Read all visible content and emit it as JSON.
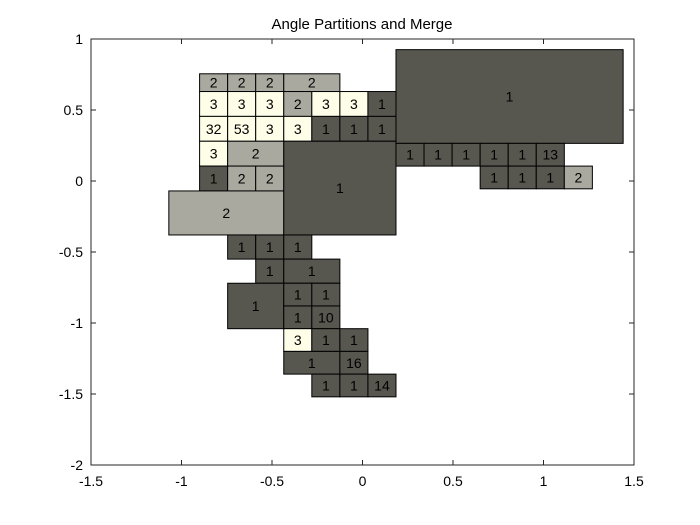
{
  "chart_data": {
    "type": "patch-grid",
    "title": "Angle Partitions and Merge",
    "xlabel": "",
    "ylabel": "",
    "xlim": [
      -1.5,
      1.5
    ],
    "ylim": [
      -2,
      1
    ],
    "xticks": [
      -1.5,
      -1,
      -0.5,
      0,
      0.5,
      1,
      1.5
    ],
    "yticks": [
      -2,
      -1.5,
      -1,
      -0.5,
      0,
      0.5,
      1
    ],
    "xtick_labels": [
      "-1.5",
      "-1",
      "-0.5",
      "0",
      "0.5",
      "1",
      "1.5"
    ],
    "ytick_labels": [
      "-2",
      "-1.5",
      "-1",
      "-0.5",
      "0",
      "0.5",
      "1"
    ],
    "grid": false,
    "colors": {
      "1": "#57564f",
      "2": "#aaa99f",
      "3": "#fefee8"
    },
    "cells": [
      {
        "x0": -0.9,
        "x1": -0.745,
        "y0": 0.63,
        "y1": 0.755,
        "label": "2",
        "value": 2
      },
      {
        "x0": -0.745,
        "x1": -0.59,
        "y0": 0.63,
        "y1": 0.755,
        "label": "2",
        "value": 2
      },
      {
        "x0": -0.59,
        "x1": -0.435,
        "y0": 0.63,
        "y1": 0.755,
        "label": "2",
        "value": 2
      },
      {
        "x0": -0.435,
        "x1": -0.125,
        "y0": 0.63,
        "y1": 0.755,
        "label": "2",
        "value": 2
      },
      {
        "x0": -0.9,
        "x1": -0.745,
        "y0": 0.455,
        "y1": 0.63,
        "label": "3",
        "value": 3
      },
      {
        "x0": -0.745,
        "x1": -0.59,
        "y0": 0.455,
        "y1": 0.63,
        "label": "3",
        "value": 3
      },
      {
        "x0": -0.59,
        "x1": -0.435,
        "y0": 0.455,
        "y1": 0.63,
        "label": "3",
        "value": 3
      },
      {
        "x0": -0.435,
        "x1": -0.28,
        "y0": 0.455,
        "y1": 0.63,
        "label": "2",
        "value": 2
      },
      {
        "x0": -0.28,
        "x1": -0.125,
        "y0": 0.455,
        "y1": 0.63,
        "label": "3",
        "value": 3
      },
      {
        "x0": -0.125,
        "x1": 0.03,
        "y0": 0.455,
        "y1": 0.63,
        "label": "3",
        "value": 3
      },
      {
        "x0": 0.03,
        "x1": 0.185,
        "y0": 0.455,
        "y1": 0.63,
        "label": "1",
        "value": 1
      },
      {
        "x0": -0.9,
        "x1": -0.745,
        "y0": 0.28,
        "y1": 0.455,
        "label": "32",
        "value": 3
      },
      {
        "x0": -0.745,
        "x1": -0.59,
        "y0": 0.28,
        "y1": 0.455,
        "label": "53",
        "value": 3
      },
      {
        "x0": -0.59,
        "x1": -0.435,
        "y0": 0.28,
        "y1": 0.455,
        "label": "3",
        "value": 3
      },
      {
        "x0": -0.435,
        "x1": -0.28,
        "y0": 0.28,
        "y1": 0.455,
        "label": "3",
        "value": 3
      },
      {
        "x0": -0.28,
        "x1": -0.125,
        "y0": 0.28,
        "y1": 0.455,
        "label": "1",
        "value": 1
      },
      {
        "x0": -0.125,
        "x1": 0.03,
        "y0": 0.28,
        "y1": 0.455,
        "label": "1",
        "value": 1
      },
      {
        "x0": 0.03,
        "x1": 0.185,
        "y0": 0.28,
        "y1": 0.455,
        "label": "1",
        "value": 1
      },
      {
        "x0": -0.9,
        "x1": -0.745,
        "y0": 0.105,
        "y1": 0.28,
        "label": "3",
        "value": 3
      },
      {
        "x0": -0.745,
        "x1": -0.435,
        "y0": 0.105,
        "y1": 0.28,
        "label": "2",
        "value": 2
      },
      {
        "x0": -0.9,
        "x1": -0.745,
        "y0": -0.07,
        "y1": 0.105,
        "label": "1",
        "value": 1
      },
      {
        "x0": -0.745,
        "x1": -0.59,
        "y0": -0.07,
        "y1": 0.105,
        "label": "2",
        "value": 2
      },
      {
        "x0": -0.59,
        "x1": -0.435,
        "y0": -0.07,
        "y1": 0.105,
        "label": "2",
        "value": 2
      },
      {
        "x0": -1.07,
        "x1": -0.435,
        "y0": -0.38,
        "y1": -0.07,
        "label": "2",
        "value": 2
      },
      {
        "x0": -0.435,
        "x1": 0.185,
        "y0": -0.38,
        "y1": 0.28,
        "label": "1",
        "value": 1
      },
      {
        "x0": 0.185,
        "x1": 1.44,
        "y0": 0.265,
        "y1": 0.925,
        "label": "1",
        "value": 1
      },
      {
        "x0": 0.185,
        "x1": 0.34,
        "y0": 0.105,
        "y1": 0.265,
        "label": "1",
        "value": 1
      },
      {
        "x0": 0.34,
        "x1": 0.495,
        "y0": 0.105,
        "y1": 0.265,
        "label": "1",
        "value": 1
      },
      {
        "x0": 0.495,
        "x1": 0.65,
        "y0": 0.105,
        "y1": 0.265,
        "label": "1",
        "value": 1
      },
      {
        "x0": 0.65,
        "x1": 0.805,
        "y0": 0.105,
        "y1": 0.265,
        "label": "1",
        "value": 1
      },
      {
        "x0": 0.805,
        "x1": 0.96,
        "y0": 0.105,
        "y1": 0.265,
        "label": "1",
        "value": 1
      },
      {
        "x0": 0.96,
        "x1": 1.115,
        "y0": 0.105,
        "y1": 0.265,
        "label": "13",
        "value": 1
      },
      {
        "x0": 0.65,
        "x1": 0.805,
        "y0": -0.055,
        "y1": 0.105,
        "label": "1",
        "value": 1
      },
      {
        "x0": 0.805,
        "x1": 0.96,
        "y0": -0.055,
        "y1": 0.105,
        "label": "1",
        "value": 1
      },
      {
        "x0": 0.96,
        "x1": 1.115,
        "y0": -0.055,
        "y1": 0.105,
        "label": "1",
        "value": 1
      },
      {
        "x0": 1.115,
        "x1": 1.27,
        "y0": -0.055,
        "y1": 0.105,
        "label": "2",
        "value": 2
      },
      {
        "x0": -0.745,
        "x1": -0.59,
        "y0": -0.55,
        "y1": -0.38,
        "label": "1",
        "value": 1
      },
      {
        "x0": -0.59,
        "x1": -0.435,
        "y0": -0.55,
        "y1": -0.38,
        "label": "1",
        "value": 1
      },
      {
        "x0": -0.435,
        "x1": -0.28,
        "y0": -0.55,
        "y1": -0.38,
        "label": "1",
        "value": 1
      },
      {
        "x0": -0.59,
        "x1": -0.435,
        "y0": -0.72,
        "y1": -0.55,
        "label": "1",
        "value": 1
      },
      {
        "x0": -0.435,
        "x1": -0.125,
        "y0": -0.72,
        "y1": -0.55,
        "label": "1",
        "value": 1
      },
      {
        "x0": -0.745,
        "x1": -0.435,
        "y0": -1.04,
        "y1": -0.72,
        "label": "1",
        "value": 1
      },
      {
        "x0": -0.435,
        "x1": -0.28,
        "y0": -0.88,
        "y1": -0.72,
        "label": "1",
        "value": 1
      },
      {
        "x0": -0.28,
        "x1": -0.125,
        "y0": -0.88,
        "y1": -0.72,
        "label": "1",
        "value": 1
      },
      {
        "x0": -0.435,
        "x1": -0.28,
        "y0": -1.04,
        "y1": -0.88,
        "label": "1",
        "value": 1
      },
      {
        "x0": -0.28,
        "x1": -0.125,
        "y0": -1.04,
        "y1": -0.88,
        "label": "10",
        "value": 1
      },
      {
        "x0": -0.435,
        "x1": -0.28,
        "y0": -1.2,
        "y1": -1.04,
        "label": "3",
        "value": 3
      },
      {
        "x0": -0.28,
        "x1": -0.125,
        "y0": -1.2,
        "y1": -1.04,
        "label": "1",
        "value": 1
      },
      {
        "x0": -0.125,
        "x1": 0.03,
        "y0": -1.2,
        "y1": -1.04,
        "label": "1",
        "value": 1
      },
      {
        "x0": -0.435,
        "x1": -0.125,
        "y0": -1.36,
        "y1": -1.2,
        "label": "1",
        "value": 1
      },
      {
        "x0": -0.125,
        "x1": 0.03,
        "y0": -1.36,
        "y1": -1.2,
        "label": "16",
        "value": 1
      },
      {
        "x0": -0.28,
        "x1": -0.125,
        "y0": -1.52,
        "y1": -1.36,
        "label": "1",
        "value": 1
      },
      {
        "x0": -0.125,
        "x1": 0.03,
        "y0": -1.52,
        "y1": -1.36,
        "label": "1",
        "value": 1
      },
      {
        "x0": 0.03,
        "x1": 0.185,
        "y0": -1.52,
        "y1": -1.36,
        "label": "14",
        "value": 1
      }
    ]
  }
}
